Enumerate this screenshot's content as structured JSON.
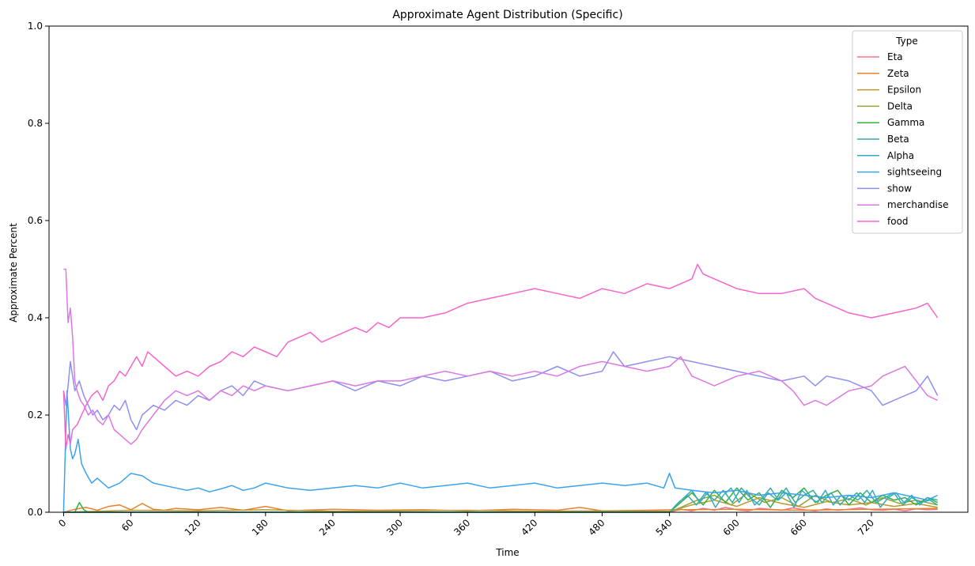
{
  "chart_data": {
    "type": "line",
    "title": "Approximate Agent Distribution (Specific)",
    "xlabel": "Time",
    "ylabel": "Approximate Percent",
    "xlim": [
      -13,
      806
    ],
    "ylim": [
      0,
      1
    ],
    "xticks": [
      "0",
      "60",
      "120",
      "180",
      "240",
      "300",
      "360",
      "420",
      "480",
      "540",
      "600",
      "660",
      "720"
    ],
    "yticks": [
      "0.0",
      "0.2",
      "0.4",
      "0.6",
      "0.8",
      "1.0"
    ],
    "grid": false,
    "legend": {
      "title": "Type",
      "placement": "top-right"
    },
    "series": [
      {
        "name": "Eta",
        "color": "#f77189",
        "x": [
          0,
          540,
          550,
          560,
          570,
          580,
          590,
          600,
          610,
          620,
          630,
          640,
          650,
          660,
          670,
          680,
          690,
          700,
          710,
          720,
          730,
          740,
          750,
          760,
          770,
          779
        ],
        "values": [
          0,
          0,
          0.006,
          0.003,
          0.008,
          0.004,
          0.01,
          0.005,
          0.003,
          0.008,
          0.006,
          0.004,
          0.009,
          0.005,
          0.003,
          0.007,
          0.004,
          0.006,
          0.009,
          0.005,
          0.004,
          0.006,
          0.003,
          0.007,
          0.005,
          0.006
        ]
      },
      {
        "name": "Zeta",
        "color": "#e88230",
        "x": [
          0,
          10,
          20,
          30,
          40,
          50,
          60,
          70,
          80,
          90,
          100,
          120,
          140,
          160,
          180,
          200,
          240,
          280,
          320,
          360,
          400,
          440,
          460,
          480,
          520,
          540,
          600,
          660,
          720,
          779
        ],
        "values": [
          0,
          0.006,
          0.01,
          0.004,
          0.012,
          0.015,
          0.005,
          0.018,
          0.006,
          0.004,
          0.008,
          0.005,
          0.01,
          0.004,
          0.012,
          0.003,
          0.006,
          0.004,
          0.005,
          0.003,
          0.006,
          0.004,
          0.01,
          0.003,
          0.004,
          0.005,
          0.006,
          0.004,
          0.006,
          0.008
        ]
      },
      {
        "name": "Epsilon",
        "color": "#bb9832",
        "x": [
          0,
          60,
          120,
          180,
          240,
          300,
          360,
          420,
          480,
          540,
          560,
          580,
          600,
          620,
          640,
          660,
          680,
          700,
          720,
          740,
          760,
          779
        ],
        "values": [
          0,
          0.004,
          0.003,
          0.005,
          0.002,
          0.003,
          0.004,
          0.002,
          0.003,
          0.002,
          0.015,
          0.025,
          0.012,
          0.03,
          0.018,
          0.01,
          0.022,
          0.015,
          0.02,
          0.012,
          0.018,
          0.01
        ]
      },
      {
        "name": "Delta",
        "color": "#97a431",
        "x": [
          0,
          540,
          550,
          565,
          580,
          595,
          610,
          625,
          640,
          655,
          670,
          685,
          700,
          715,
          730,
          745,
          760,
          779
        ],
        "values": [
          0,
          0,
          0.01,
          0.025,
          0.035,
          0.015,
          0.04,
          0.02,
          0.03,
          0.012,
          0.035,
          0.02,
          0.028,
          0.015,
          0.03,
          0.018,
          0.025,
          0.015
        ]
      },
      {
        "name": "Gamma",
        "color": "#33b040",
        "x": [
          0,
          10,
          14,
          18,
          22,
          540,
          550,
          560,
          570,
          580,
          590,
          600,
          610,
          620,
          630,
          640,
          650,
          660,
          670,
          680,
          690,
          700,
          710,
          720,
          730,
          740,
          750,
          760,
          770,
          779
        ],
        "values": [
          0,
          0,
          0.02,
          0.005,
          0,
          0,
          0.02,
          0.04,
          0.015,
          0.045,
          0.02,
          0.05,
          0.025,
          0.04,
          0.01,
          0.045,
          0.03,
          0.05,
          0.02,
          0.035,
          0.045,
          0.015,
          0.04,
          0.02,
          0.035,
          0.025,
          0.03,
          0.015,
          0.03,
          0.02
        ]
      },
      {
        "name": "Beta",
        "color": "#36ada4",
        "x": [
          0,
          540,
          548,
          556,
          564,
          572,
          580,
          588,
          596,
          604,
          612,
          620,
          628,
          636,
          644,
          652,
          660,
          668,
          676,
          684,
          692,
          700,
          708,
          716,
          724,
          732,
          740,
          748,
          756,
          764,
          772,
          779
        ],
        "values": [
          0,
          0,
          0.02,
          0.035,
          0.015,
          0.04,
          0.025,
          0.045,
          0.02,
          0.05,
          0.03,
          0.015,
          0.04,
          0.025,
          0.05,
          0.02,
          0.035,
          0.045,
          0.02,
          0.04,
          0.015,
          0.035,
          0.025,
          0.045,
          0.02,
          0.03,
          0.04,
          0.015,
          0.03,
          0.02,
          0.025,
          0.015
        ]
      },
      {
        "name": "Alpha",
        "color": "#38aabf",
        "x": [
          0,
          540,
          546,
          553,
          560,
          567,
          574,
          581,
          588,
          595,
          602,
          609,
          616,
          623,
          630,
          637,
          644,
          651,
          658,
          665,
          672,
          679,
          686,
          693,
          700,
          707,
          714,
          721,
          728,
          735,
          742,
          749,
          756,
          763,
          770,
          779
        ],
        "values": [
          0,
          0,
          0.015,
          0.03,
          0.045,
          0.02,
          0.04,
          0.01,
          0.035,
          0.05,
          0.02,
          0.045,
          0.015,
          0.03,
          0.05,
          0.025,
          0.04,
          0.01,
          0.045,
          0.03,
          0.02,
          0.045,
          0.015,
          0.035,
          0.025,
          0.04,
          0.02,
          0.045,
          0.01,
          0.03,
          0.04,
          0.02,
          0.035,
          0.015,
          0.03,
          0.025
        ]
      },
      {
        "name": "sightseeing",
        "color": "#3ba3ec",
        "x": [
          0,
          3,
          6,
          8,
          10,
          13,
          16,
          20,
          25,
          30,
          40,
          50,
          60,
          70,
          80,
          90,
          100,
          110,
          120,
          130,
          140,
          150,
          160,
          170,
          180,
          200,
          220,
          240,
          260,
          280,
          300,
          320,
          340,
          360,
          380,
          400,
          420,
          440,
          460,
          480,
          500,
          520,
          535,
          540,
          545,
          560,
          580,
          600,
          620,
          640,
          660,
          680,
          700,
          720,
          740,
          760,
          770,
          779
        ],
        "values": [
          0,
          0.25,
          0.13,
          0.11,
          0.12,
          0.15,
          0.1,
          0.08,
          0.06,
          0.07,
          0.05,
          0.06,
          0.08,
          0.075,
          0.06,
          0.055,
          0.05,
          0.045,
          0.05,
          0.042,
          0.048,
          0.055,
          0.045,
          0.05,
          0.06,
          0.05,
          0.045,
          0.05,
          0.055,
          0.05,
          0.06,
          0.05,
          0.055,
          0.06,
          0.05,
          0.055,
          0.06,
          0.05,
          0.055,
          0.06,
          0.055,
          0.06,
          0.05,
          0.08,
          0.05,
          0.045,
          0.04,
          0.045,
          0.035,
          0.04,
          0.035,
          0.03,
          0.035,
          0.03,
          0.04,
          0.03,
          0.025,
          0.035
        ]
      },
      {
        "name": "show",
        "color": "#8e8ff0",
        "x": [
          0,
          2,
          4,
          6,
          8,
          10,
          14,
          18,
          22,
          26,
          30,
          35,
          40,
          45,
          50,
          55,
          60,
          65,
          70,
          80,
          90,
          100,
          110,
          120,
          130,
          140,
          150,
          160,
          170,
          180,
          200,
          220,
          240,
          260,
          280,
          300,
          320,
          340,
          360,
          380,
          400,
          420,
          440,
          460,
          480,
          490,
          500,
          520,
          540,
          560,
          580,
          600,
          620,
          640,
          660,
          670,
          680,
          700,
          720,
          730,
          740,
          750,
          760,
          770,
          779
        ],
        "values": [
          0.25,
          0.22,
          0.26,
          0.31,
          0.28,
          0.25,
          0.27,
          0.24,
          0.22,
          0.2,
          0.21,
          0.19,
          0.2,
          0.22,
          0.21,
          0.23,
          0.19,
          0.17,
          0.2,
          0.22,
          0.21,
          0.23,
          0.22,
          0.24,
          0.23,
          0.25,
          0.26,
          0.24,
          0.27,
          0.26,
          0.25,
          0.26,
          0.27,
          0.25,
          0.27,
          0.26,
          0.28,
          0.27,
          0.28,
          0.29,
          0.27,
          0.28,
          0.3,
          0.28,
          0.29,
          0.33,
          0.3,
          0.31,
          0.32,
          0.31,
          0.3,
          0.29,
          0.28,
          0.27,
          0.28,
          0.26,
          0.28,
          0.27,
          0.25,
          0.22,
          0.23,
          0.24,
          0.25,
          0.28,
          0.24
        ]
      },
      {
        "name": "merchandise",
        "color": "#de77e2",
        "x": [
          0,
          2,
          4,
          6,
          8,
          10,
          12,
          15,
          18,
          22,
          26,
          30,
          35,
          40,
          45,
          50,
          55,
          60,
          65,
          70,
          80,
          90,
          100,
          110,
          120,
          130,
          140,
          150,
          160,
          170,
          180,
          200,
          220,
          240,
          260,
          280,
          300,
          320,
          340,
          360,
          380,
          400,
          420,
          440,
          460,
          480,
          500,
          520,
          540,
          550,
          560,
          570,
          580,
          600,
          620,
          640,
          650,
          660,
          670,
          680,
          700,
          720,
          730,
          740,
          750,
          760,
          770,
          779
        ],
        "values": [
          0.5,
          0.5,
          0.39,
          0.42,
          0.36,
          0.27,
          0.25,
          0.23,
          0.22,
          0.2,
          0.21,
          0.19,
          0.18,
          0.2,
          0.17,
          0.16,
          0.15,
          0.14,
          0.15,
          0.17,
          0.2,
          0.23,
          0.25,
          0.24,
          0.25,
          0.23,
          0.25,
          0.24,
          0.26,
          0.25,
          0.26,
          0.25,
          0.26,
          0.27,
          0.26,
          0.27,
          0.27,
          0.28,
          0.29,
          0.28,
          0.29,
          0.28,
          0.29,
          0.28,
          0.3,
          0.31,
          0.3,
          0.29,
          0.3,
          0.32,
          0.28,
          0.27,
          0.26,
          0.28,
          0.29,
          0.27,
          0.25,
          0.22,
          0.23,
          0.22,
          0.25,
          0.26,
          0.28,
          0.29,
          0.3,
          0.27,
          0.24,
          0.23
        ]
      },
      {
        "name": "food",
        "color": "#f565cc",
        "x": [
          0,
          2,
          4,
          6,
          8,
          12,
          16,
          20,
          25,
          30,
          35,
          40,
          45,
          50,
          55,
          60,
          65,
          70,
          75,
          80,
          90,
          100,
          110,
          120,
          130,
          140,
          150,
          160,
          170,
          180,
          190,
          200,
          210,
          220,
          230,
          240,
          250,
          260,
          270,
          280,
          290,
          300,
          320,
          340,
          360,
          380,
          400,
          420,
          440,
          460,
          480,
          500,
          520,
          540,
          550,
          560,
          565,
          570,
          580,
          600,
          620,
          640,
          660,
          670,
          680,
          700,
          720,
          740,
          760,
          770,
          779
        ],
        "values": [
          0.25,
          0.13,
          0.16,
          0.14,
          0.17,
          0.18,
          0.2,
          0.22,
          0.24,
          0.25,
          0.23,
          0.26,
          0.27,
          0.29,
          0.28,
          0.3,
          0.32,
          0.3,
          0.33,
          0.32,
          0.3,
          0.28,
          0.29,
          0.28,
          0.3,
          0.31,
          0.33,
          0.32,
          0.34,
          0.33,
          0.32,
          0.35,
          0.36,
          0.37,
          0.35,
          0.36,
          0.37,
          0.38,
          0.37,
          0.39,
          0.38,
          0.4,
          0.4,
          0.41,
          0.43,
          0.44,
          0.45,
          0.46,
          0.45,
          0.44,
          0.46,
          0.45,
          0.47,
          0.46,
          0.47,
          0.48,
          0.51,
          0.49,
          0.48,
          0.46,
          0.45,
          0.45,
          0.46,
          0.44,
          0.43,
          0.41,
          0.4,
          0.41,
          0.42,
          0.43,
          0.4
        ]
      }
    ]
  }
}
